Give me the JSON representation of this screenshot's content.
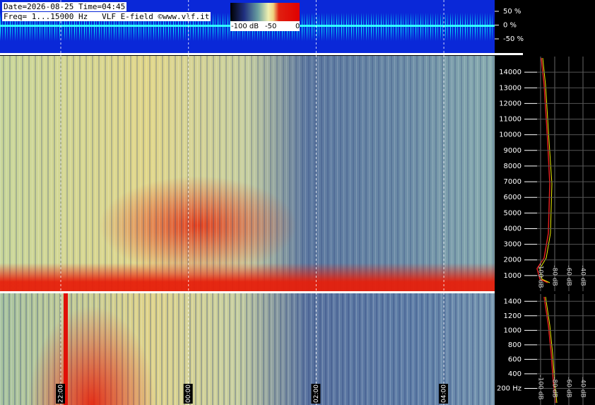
{
  "header": {
    "date_line": "Date=2026-08-25 Time=04:45",
    "freq_line": "Freq= 1...15000 Hz   VLF E-field ©www.vlf.it"
  },
  "colorbar": {
    "labels": [
      "-100 dB",
      "-50",
      "0"
    ]
  },
  "waveform": {
    "labels": [
      "50 %",
      "0 %",
      "-50 %"
    ]
  },
  "upper_panel": {
    "ylim": [
      0,
      15000
    ],
    "yticks": [
      1000,
      2000,
      3000,
      4000,
      5000,
      6000,
      7000,
      8000,
      9000,
      10000,
      11000,
      12000,
      13000,
      14000
    ],
    "spectrum_labels": [
      "-100 dB",
      "-80 dB",
      "-60 dB",
      "-40 dB",
      "-20 dB"
    ]
  },
  "lower_panel": {
    "ylim": [
      0,
      1500
    ],
    "yticks": [
      {
        "value": 200,
        "label": "200 Hz"
      },
      400,
      600,
      800,
      1000,
      1200,
      1400
    ],
    "spectrum_labels": [
      "-100 dB",
      "-80 dB",
      "-60 dB",
      "-40 dB",
      "-20 dB"
    ]
  },
  "time_labels": [
    "22:00",
    "00:00",
    "02:00",
    "04:00"
  ]
}
